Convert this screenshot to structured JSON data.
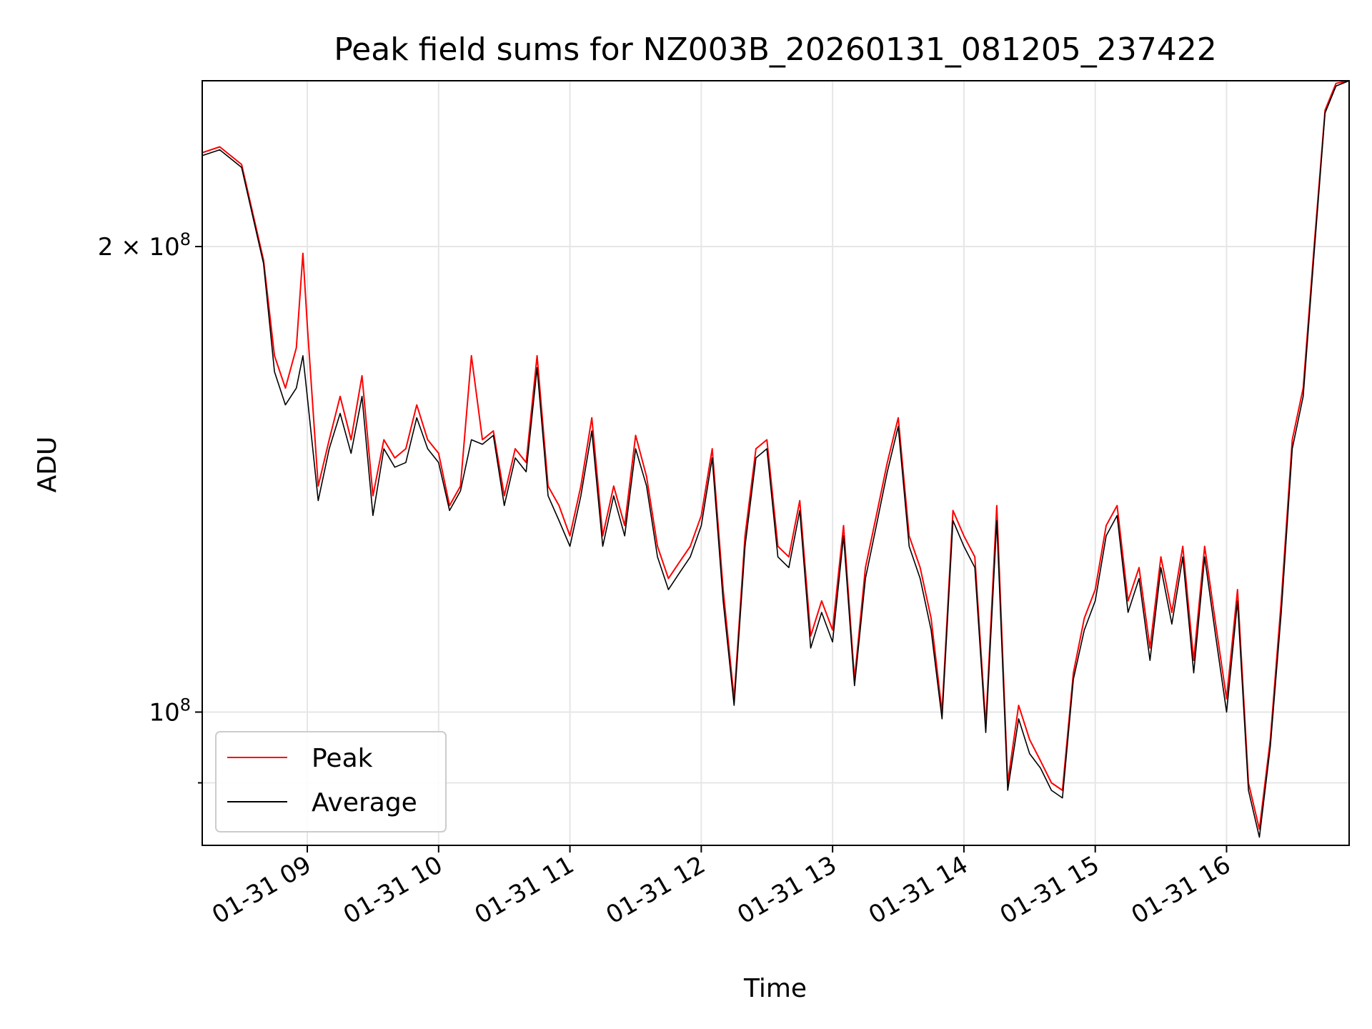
{
  "chart_data": {
    "type": "line",
    "title": "Peak field sums for NZ003B_20260131_081205_237422",
    "xlabel": "Time",
    "ylabel": "ADU",
    "y_scale": "log",
    "ylim": [
      82000000,
      256000000
    ],
    "xlim": [
      "01-31 08:12",
      "01-31 16:56"
    ],
    "x_ticks": [
      {
        "value": "01-31 09:00",
        "label": "01-31 09"
      },
      {
        "value": "01-31 10:00",
        "label": "01-31 10"
      },
      {
        "value": "01-31 11:00",
        "label": "01-31 11"
      },
      {
        "value": "01-31 12:00",
        "label": "01-31 12"
      },
      {
        "value": "01-31 13:00",
        "label": "01-31 13"
      },
      {
        "value": "01-31 14:00",
        "label": "01-31 14"
      },
      {
        "value": "01-31 15:00",
        "label": "01-31 15"
      },
      {
        "value": "01-31 16:00",
        "label": "01-31 16"
      }
    ],
    "y_ticks_major": [
      {
        "value": 100000000,
        "base": "10",
        "exp": "8",
        "label": ""
      },
      {
        "value": 200000000,
        "base": "10",
        "exp": "8",
        "label": "2 × "
      }
    ],
    "y_ticks_minor": [
      90000000
    ],
    "grid": true,
    "legend": "lower-left",
    "series": [
      {
        "name": "Peak",
        "color": "#ff0000",
        "x": [
          "01-31 08:12",
          "01-31 08:20",
          "01-31 08:30",
          "01-31 08:40",
          "01-31 08:45",
          "01-31 08:50",
          "01-31 08:55",
          "01-31 08:58",
          "01-31 09:00",
          "01-31 09:05",
          "01-31 09:10",
          "01-31 09:15",
          "01-31 09:20",
          "01-31 09:25",
          "01-31 09:30",
          "01-31 09:35",
          "01-31 09:40",
          "01-31 09:45",
          "01-31 09:50",
          "01-31 09:55",
          "01-31 10:00",
          "01-31 10:05",
          "01-31 10:10",
          "01-31 10:15",
          "01-31 10:20",
          "01-31 10:25",
          "01-31 10:30",
          "01-31 10:35",
          "01-31 10:40",
          "01-31 10:45",
          "01-31 10:50",
          "01-31 10:55",
          "01-31 11:00",
          "01-31 11:05",
          "01-31 11:10",
          "01-31 11:15",
          "01-31 11:20",
          "01-31 11:25",
          "01-31 11:30",
          "01-31 11:35",
          "01-31 11:40",
          "01-31 11:45",
          "01-31 11:50",
          "01-31 11:55",
          "01-31 12:00",
          "01-31 12:05",
          "01-31 12:10",
          "01-31 12:15",
          "01-31 12:20",
          "01-31 12:25",
          "01-31 12:30",
          "01-31 12:35",
          "01-31 12:40",
          "01-31 12:45",
          "01-31 12:50",
          "01-31 12:55",
          "01-31 13:00",
          "01-31 13:05",
          "01-31 13:10",
          "01-31 13:15",
          "01-31 13:20",
          "01-31 13:25",
          "01-31 13:30",
          "01-31 13:35",
          "01-31 13:40",
          "01-31 13:45",
          "01-31 13:50",
          "01-31 13:55",
          "01-31 14:00",
          "01-31 14:05",
          "01-31 14:10",
          "01-31 14:15",
          "01-31 14:20",
          "01-31 14:25",
          "01-31 14:30",
          "01-31 14:35",
          "01-31 14:40",
          "01-31 14:45",
          "01-31 14:50",
          "01-31 14:55",
          "01-31 15:00",
          "01-31 15:05",
          "01-31 15:10",
          "01-31 15:15",
          "01-31 15:20",
          "01-31 15:25",
          "01-31 15:30",
          "01-31 15:35",
          "01-31 15:40",
          "01-31 15:45",
          "01-31 15:50",
          "01-31 15:55",
          "01-31 16:00",
          "01-31 16:05",
          "01-31 16:10",
          "01-31 16:15",
          "01-31 16:20",
          "01-31 16:25",
          "01-31 16:30",
          "01-31 16:35",
          "01-31 16:40",
          "01-31 16:45",
          "01-31 16:50",
          "01-31 16:56"
        ],
        "values": [
          230000000,
          232000000,
          226000000,
          196000000,
          170000000,
          162000000,
          172000000,
          198000000,
          178000000,
          140000000,
          150000000,
          160000000,
          150000000,
          165000000,
          138000000,
          150000000,
          146000000,
          148000000,
          158000000,
          150000000,
          147000000,
          136000000,
          140000000,
          170000000,
          150000000,
          152000000,
          138000000,
          148000000,
          145000000,
          170000000,
          140000000,
          136000000,
          130000000,
          140000000,
          155000000,
          130000000,
          140000000,
          132000000,
          151000000,
          142000000,
          128000000,
          122000000,
          125000000,
          128000000,
          134000000,
          148000000,
          120000000,
          102000000,
          130000000,
          148000000,
          150000000,
          128000000,
          126000000,
          137000000,
          112000000,
          118000000,
          113000000,
          132000000,
          105000000,
          124000000,
          134000000,
          145000000,
          155000000,
          130000000,
          124000000,
          115000000,
          100000000,
          135000000,
          130000000,
          126000000,
          98000000,
          136000000,
          90000000,
          101000000,
          96000000,
          93000000,
          90000000,
          89000000,
          106000000,
          115000000,
          120000000,
          132000000,
          136000000,
          118000000,
          124000000,
          110000000,
          126000000,
          116000000,
          128000000,
          108000000,
          128000000,
          114000000,
          102000000,
          120000000,
          90000000,
          84000000,
          96000000,
          118000000,
          150000000,
          162000000,
          200000000,
          245000000,
          255000000,
          256000000
        ]
      },
      {
        "name": "Average",
        "color": "#000000",
        "x": [
          "01-31 08:12",
          "01-31 08:20",
          "01-31 08:30",
          "01-31 08:40",
          "01-31 08:45",
          "01-31 08:50",
          "01-31 08:55",
          "01-31 08:58",
          "01-31 09:00",
          "01-31 09:05",
          "01-31 09:10",
          "01-31 09:15",
          "01-31 09:20",
          "01-31 09:25",
          "01-31 09:30",
          "01-31 09:35",
          "01-31 09:40",
          "01-31 09:45",
          "01-31 09:50",
          "01-31 09:55",
          "01-31 10:00",
          "01-31 10:05",
          "01-31 10:10",
          "01-31 10:15",
          "01-31 10:20",
          "01-31 10:25",
          "01-31 10:30",
          "01-31 10:35",
          "01-31 10:40",
          "01-31 10:45",
          "01-31 10:50",
          "01-31 10:55",
          "01-31 11:00",
          "01-31 11:05",
          "01-31 11:10",
          "01-31 11:15",
          "01-31 11:20",
          "01-31 11:25",
          "01-31 11:30",
          "01-31 11:35",
          "01-31 11:40",
          "01-31 11:45",
          "01-31 11:50",
          "01-31 11:55",
          "01-31 12:00",
          "01-31 12:05",
          "01-31 12:10",
          "01-31 12:15",
          "01-31 12:20",
          "01-31 12:25",
          "01-31 12:30",
          "01-31 12:35",
          "01-31 12:40",
          "01-31 12:45",
          "01-31 12:50",
          "01-31 12:55",
          "01-31 13:00",
          "01-31 13:05",
          "01-31 13:10",
          "01-31 13:15",
          "01-31 13:20",
          "01-31 13:25",
          "01-31 13:30",
          "01-31 13:35",
          "01-31 13:40",
          "01-31 13:45",
          "01-31 13:50",
          "01-31 13:55",
          "01-31 14:00",
          "01-31 14:05",
          "01-31 14:10",
          "01-31 14:15",
          "01-31 14:20",
          "01-31 14:25",
          "01-31 14:30",
          "01-31 14:35",
          "01-31 14:40",
          "01-31 14:45",
          "01-31 14:50",
          "01-31 14:55",
          "01-31 15:00",
          "01-31 15:05",
          "01-31 15:10",
          "01-31 15:15",
          "01-31 15:20",
          "01-31 15:25",
          "01-31 15:30",
          "01-31 15:35",
          "01-31 15:40",
          "01-31 15:45",
          "01-31 15:50",
          "01-31 15:55",
          "01-31 16:00",
          "01-31 16:05",
          "01-31 16:10",
          "01-31 16:15",
          "01-31 16:20",
          "01-31 16:25",
          "01-31 16:30",
          "01-31 16:35",
          "01-31 16:40",
          "01-31 16:45",
          "01-31 16:50",
          "01-31 16:56"
        ],
        "values": [
          229000000,
          231000000,
          225000000,
          195000000,
          166000000,
          158000000,
          162000000,
          170000000,
          160000000,
          137000000,
          148000000,
          156000000,
          147000000,
          160000000,
          134000000,
          148000000,
          144000000,
          145000000,
          155000000,
          148000000,
          145000000,
          135000000,
          139000000,
          150000000,
          149000000,
          151000000,
          136000000,
          146000000,
          143000000,
          167000000,
          138000000,
          133000000,
          128000000,
          138000000,
          152000000,
          128000000,
          138000000,
          130000000,
          148000000,
          140000000,
          126000000,
          120000000,
          123000000,
          126000000,
          132000000,
          146000000,
          118000000,
          101000000,
          128000000,
          146000000,
          148000000,
          126000000,
          124000000,
          135000000,
          110000000,
          116000000,
          111000000,
          130000000,
          104000000,
          122000000,
          132000000,
          143000000,
          153000000,
          128000000,
          122000000,
          113000000,
          99000000,
          133000000,
          128000000,
          124000000,
          97000000,
          133000000,
          89000000,
          99000000,
          94000000,
          92000000,
          89000000,
          88000000,
          105000000,
          113000000,
          118000000,
          130000000,
          134000000,
          116000000,
          122000000,
          108000000,
          124000000,
          114000000,
          126000000,
          106000000,
          126000000,
          112000000,
          100000000,
          118000000,
          89000000,
          83000000,
          95000000,
          116000000,
          148000000,
          160000000,
          198000000,
          244000000,
          254000000,
          256000000
        ]
      }
    ]
  }
}
